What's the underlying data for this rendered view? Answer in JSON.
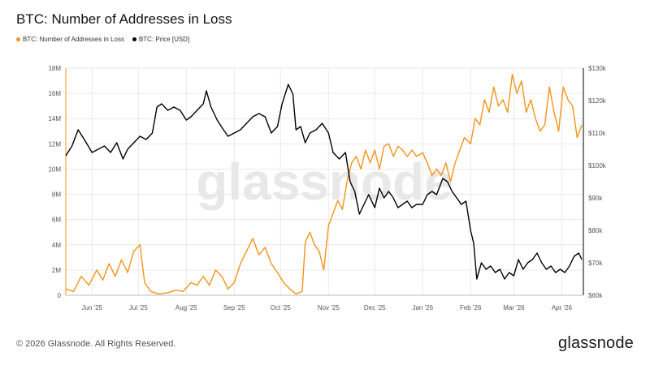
{
  "title": "BTC: Number of Addresses in Loss",
  "footer": {
    "copyright": "© 2026 Glassnode. All Rights Reserved.",
    "brand": "glassnode"
  },
  "watermark": "glassnode",
  "colors": {
    "addresses": "#f7931a",
    "price": "#000000",
    "grid": "#e9e9e9",
    "axis": "#bbbbbb"
  },
  "chart_data": {
    "type": "line",
    "legend_placement": "top-left",
    "grid": true,
    "x_ticks": [
      {
        "date": "2025-06-01",
        "label": "Jun '25"
      },
      {
        "date": "2025-07-01",
        "label": "Jul '25"
      },
      {
        "date": "2025-08-01",
        "label": "Aug '25"
      },
      {
        "date": "2025-09-01",
        "label": "Sep '25"
      },
      {
        "date": "2025-10-01",
        "label": "Oct '25"
      },
      {
        "date": "2025-11-01",
        "label": "Nov '25"
      },
      {
        "date": "2025-12-01",
        "label": "Dec '25"
      },
      {
        "date": "2026-01-01",
        "label": "Jan '26"
      },
      {
        "date": "2026-02-01",
        "label": "Feb '26"
      },
      {
        "date": "2026-03-01",
        "label": "Mar '26"
      },
      {
        "date": "2026-04-01",
        "label": "Apr '26"
      }
    ],
    "xlim": [
      "2025-05-15",
      "2026-04-15"
    ],
    "y_left": {
      "ylim": [
        0,
        18
      ],
      "ticks": [
        0,
        2,
        4,
        6,
        8,
        10,
        12,
        14,
        16,
        18
      ],
      "tick_labels": [
        "0",
        "2M",
        "4M",
        "6M",
        "8M",
        "10M",
        "12M",
        "14M",
        "16M",
        "18M"
      ]
    },
    "y_right": {
      "ylim": [
        60,
        130
      ],
      "ticks": [
        60,
        70,
        80,
        90,
        100,
        110,
        120,
        130
      ],
      "tick_labels": [
        "$60k",
        "$70k",
        "$80k",
        "$90k",
        "$100k",
        "$110k",
        "$120k",
        "$130k"
      ]
    },
    "series": [
      {
        "name": "BTC: Number of Addresses in Loss",
        "axis": "left",
        "color": "#f7931a",
        "points": [
          [
            "2025-05-15",
            0.5
          ],
          [
            "2025-05-20",
            0.3
          ],
          [
            "2025-05-25",
            1.5
          ],
          [
            "2025-05-30",
            0.8
          ],
          [
            "2025-06-04",
            2.0
          ],
          [
            "2025-06-08",
            1.2
          ],
          [
            "2025-06-12",
            2.5
          ],
          [
            "2025-06-16",
            1.5
          ],
          [
            "2025-06-20",
            2.8
          ],
          [
            "2025-06-24",
            1.8
          ],
          [
            "2025-06-28",
            3.5
          ],
          [
            "2025-07-02",
            4.0
          ],
          [
            "2025-07-05",
            1.0
          ],
          [
            "2025-07-09",
            0.3
          ],
          [
            "2025-07-14",
            0.1
          ],
          [
            "2025-07-20",
            0.2
          ],
          [
            "2025-07-25",
            0.4
          ],
          [
            "2025-07-30",
            0.3
          ],
          [
            "2025-08-04",
            1.0
          ],
          [
            "2025-08-08",
            0.8
          ],
          [
            "2025-08-12",
            1.5
          ],
          [
            "2025-08-16",
            0.8
          ],
          [
            "2025-08-20",
            2.0
          ],
          [
            "2025-08-24",
            1.5
          ],
          [
            "2025-08-28",
            0.5
          ],
          [
            "2025-09-01",
            1.0
          ],
          [
            "2025-09-05",
            2.5
          ],
          [
            "2025-09-09",
            3.5
          ],
          [
            "2025-09-13",
            4.5
          ],
          [
            "2025-09-17",
            3.2
          ],
          [
            "2025-09-21",
            3.8
          ],
          [
            "2025-09-25",
            2.5
          ],
          [
            "2025-09-29",
            1.8
          ],
          [
            "2025-10-03",
            1.0
          ],
          [
            "2025-10-07",
            0.5
          ],
          [
            "2025-10-11",
            0.1
          ],
          [
            "2025-10-15",
            0.3
          ],
          [
            "2025-10-17",
            4.2
          ],
          [
            "2025-10-20",
            5.0
          ],
          [
            "2025-10-23",
            4.0
          ],
          [
            "2025-10-26",
            3.5
          ],
          [
            "2025-10-29",
            2.0
          ],
          [
            "2025-11-01",
            5.5
          ],
          [
            "2025-11-04",
            6.5
          ],
          [
            "2025-11-07",
            7.5
          ],
          [
            "2025-11-10",
            6.8
          ],
          [
            "2025-11-13",
            9.0
          ],
          [
            "2025-11-16",
            10.5
          ],
          [
            "2025-11-19",
            11.0
          ],
          [
            "2025-11-22",
            10.0
          ],
          [
            "2025-11-25",
            11.5
          ],
          [
            "2025-11-28",
            10.5
          ],
          [
            "2025-12-01",
            11.5
          ],
          [
            "2025-12-04",
            10.0
          ],
          [
            "2025-12-07",
            11.8
          ],
          [
            "2025-12-10",
            12.0
          ],
          [
            "2025-12-13",
            11.0
          ],
          [
            "2025-12-16",
            11.8
          ],
          [
            "2025-12-19",
            11.5
          ],
          [
            "2025-12-22",
            11.0
          ],
          [
            "2025-12-25",
            11.5
          ],
          [
            "2025-12-28",
            11.0
          ],
          [
            "2026-01-01",
            11.3
          ],
          [
            "2026-01-04",
            10.5
          ],
          [
            "2026-01-07",
            9.5
          ],
          [
            "2026-01-10",
            10.0
          ],
          [
            "2026-01-13",
            9.5
          ],
          [
            "2026-01-16",
            10.5
          ],
          [
            "2026-01-19",
            9.0
          ],
          [
            "2026-01-22",
            10.5
          ],
          [
            "2026-01-25",
            11.5
          ],
          [
            "2026-01-28",
            12.5
          ],
          [
            "2026-02-01",
            12.0
          ],
          [
            "2026-02-04",
            14.0
          ],
          [
            "2026-02-07",
            13.5
          ],
          [
            "2026-02-10",
            15.5
          ],
          [
            "2026-02-13",
            14.5
          ],
          [
            "2026-02-16",
            16.5
          ],
          [
            "2026-02-19",
            15.0
          ],
          [
            "2026-02-22",
            15.5
          ],
          [
            "2026-02-25",
            14.5
          ],
          [
            "2026-02-28",
            17.5
          ],
          [
            "2026-03-03",
            16.0
          ],
          [
            "2026-03-06",
            17.0
          ],
          [
            "2026-03-09",
            14.5
          ],
          [
            "2026-03-12",
            15.5
          ],
          [
            "2026-03-15",
            14.0
          ],
          [
            "2026-03-18",
            13.0
          ],
          [
            "2026-03-21",
            13.5
          ],
          [
            "2026-03-24",
            16.5
          ],
          [
            "2026-03-27",
            14.5
          ],
          [
            "2026-03-30",
            13.0
          ],
          [
            "2026-04-02",
            16.5
          ],
          [
            "2026-04-05",
            15.5
          ],
          [
            "2026-04-08",
            15.0
          ],
          [
            "2026-04-11",
            12.5
          ],
          [
            "2026-04-14",
            13.5
          ]
        ]
      },
      {
        "name": "BTC: Price [USD]",
        "axis": "right",
        "color": "#000000",
        "points": [
          [
            "2025-05-15",
            103
          ],
          [
            "2025-05-19",
            106
          ],
          [
            "2025-05-23",
            111
          ],
          [
            "2025-05-27",
            108
          ],
          [
            "2025-06-01",
            104
          ],
          [
            "2025-06-05",
            105
          ],
          [
            "2025-06-09",
            106
          ],
          [
            "2025-06-13",
            104
          ],
          [
            "2025-06-17",
            107
          ],
          [
            "2025-06-21",
            102
          ],
          [
            "2025-06-24",
            105
          ],
          [
            "2025-06-28",
            107
          ],
          [
            "2025-07-02",
            109
          ],
          [
            "2025-07-06",
            108
          ],
          [
            "2025-07-10",
            110
          ],
          [
            "2025-07-13",
            118
          ],
          [
            "2025-07-16",
            119
          ],
          [
            "2025-07-20",
            117
          ],
          [
            "2025-07-24",
            118
          ],
          [
            "2025-07-28",
            117
          ],
          [
            "2025-08-01",
            114
          ],
          [
            "2025-08-04",
            115
          ],
          [
            "2025-08-08",
            117
          ],
          [
            "2025-08-12",
            119
          ],
          [
            "2025-08-14",
            123
          ],
          [
            "2025-08-17",
            118
          ],
          [
            "2025-08-21",
            114
          ],
          [
            "2025-08-25",
            111
          ],
          [
            "2025-08-28",
            109
          ],
          [
            "2025-09-01",
            110
          ],
          [
            "2025-09-05",
            111
          ],
          [
            "2025-09-09",
            113
          ],
          [
            "2025-09-13",
            115
          ],
          [
            "2025-09-17",
            116
          ],
          [
            "2025-09-21",
            115
          ],
          [
            "2025-09-25",
            110
          ],
          [
            "2025-09-29",
            112
          ],
          [
            "2025-10-02",
            119
          ],
          [
            "2025-10-06",
            125
          ],
          [
            "2025-10-09",
            122
          ],
          [
            "2025-10-11",
            111
          ],
          [
            "2025-10-14",
            112
          ],
          [
            "2025-10-17",
            107
          ],
          [
            "2025-10-20",
            110
          ],
          [
            "2025-10-24",
            111
          ],
          [
            "2025-10-28",
            113
          ],
          [
            "2025-11-01",
            110
          ],
          [
            "2025-11-04",
            104
          ],
          [
            "2025-11-08",
            102
          ],
          [
            "2025-11-12",
            104
          ],
          [
            "2025-11-15",
            95
          ],
          [
            "2025-11-18",
            92
          ],
          [
            "2025-11-21",
            85
          ],
          [
            "2025-11-24",
            88
          ],
          [
            "2025-11-27",
            91
          ],
          [
            "2025-12-01",
            87
          ],
          [
            "2025-12-04",
            93
          ],
          [
            "2025-12-07",
            90
          ],
          [
            "2025-12-10",
            92
          ],
          [
            "2025-12-13",
            90
          ],
          [
            "2025-12-16",
            87
          ],
          [
            "2025-12-19",
            88
          ],
          [
            "2025-12-22",
            89
          ],
          [
            "2025-12-25",
            87
          ],
          [
            "2025-12-28",
            88
          ],
          [
            "2026-01-01",
            88
          ],
          [
            "2026-01-04",
            91
          ],
          [
            "2026-01-07",
            92
          ],
          [
            "2026-01-10",
            91
          ],
          [
            "2026-01-14",
            96
          ],
          [
            "2026-01-17",
            95
          ],
          [
            "2026-01-20",
            92
          ],
          [
            "2026-01-23",
            90
          ],
          [
            "2026-01-26",
            88
          ],
          [
            "2026-01-29",
            89
          ],
          [
            "2026-02-01",
            80
          ],
          [
            "2026-02-03",
            76
          ],
          [
            "2026-02-05",
            65
          ],
          [
            "2026-02-08",
            70
          ],
          [
            "2026-02-11",
            68
          ],
          [
            "2026-02-14",
            69
          ],
          [
            "2026-02-17",
            67
          ],
          [
            "2026-02-20",
            68
          ],
          [
            "2026-02-23",
            65
          ],
          [
            "2026-02-26",
            67
          ],
          [
            "2026-03-01",
            66
          ],
          [
            "2026-03-04",
            71
          ],
          [
            "2026-03-07",
            68
          ],
          [
            "2026-03-10",
            70
          ],
          [
            "2026-03-13",
            71
          ],
          [
            "2026-03-16",
            73
          ],
          [
            "2026-03-19",
            70
          ],
          [
            "2026-03-22",
            68
          ],
          [
            "2026-03-25",
            69
          ],
          [
            "2026-03-28",
            67
          ],
          [
            "2026-03-31",
            68
          ],
          [
            "2026-04-03",
            67
          ],
          [
            "2026-04-06",
            69
          ],
          [
            "2026-04-09",
            72
          ],
          [
            "2026-04-12",
            73
          ],
          [
            "2026-04-14",
            71
          ]
        ]
      }
    ]
  }
}
